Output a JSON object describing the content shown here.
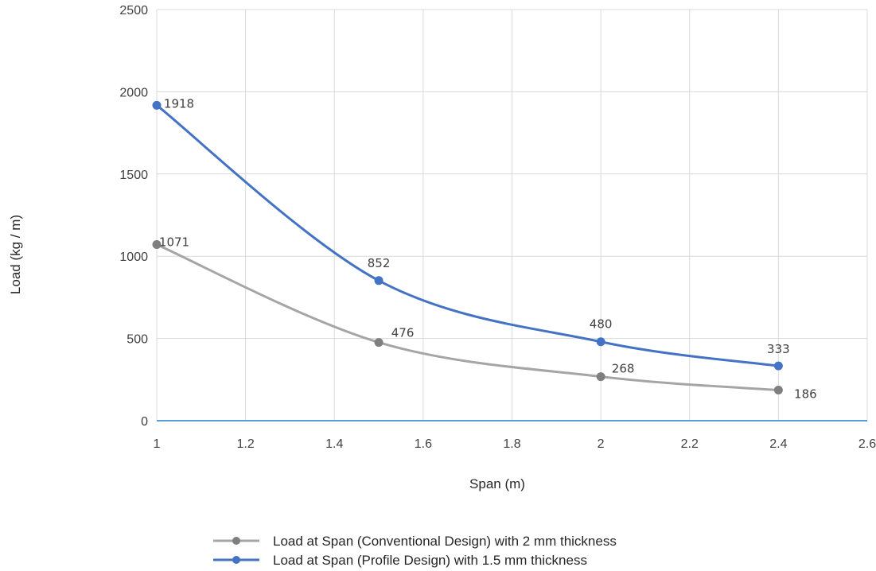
{
  "chart_data": {
    "type": "line",
    "title": "",
    "xlabel": "Span (m)",
    "ylabel": "Load (kg / m)",
    "xlim": [
      1,
      2.6
    ],
    "ylim": [
      0,
      2500
    ],
    "x_ticks": [
      "1",
      "1.2",
      "1.4",
      "1.6",
      "1.8",
      "2",
      "2.2",
      "2.4",
      "2.6"
    ],
    "y_ticks": [
      "0",
      "500",
      "1000",
      "1500",
      "2000",
      "2500"
    ],
    "grid": true,
    "smooth": true,
    "legend_position": "bottom",
    "series": [
      {
        "name": "Load at Span (Conventional Design) with 2 mm thickness",
        "color": "#a5a5a5",
        "marker_color": "#7f7f7f",
        "x": [
          1,
          1.5,
          2,
          2.4
        ],
        "y": [
          1071,
          476,
          268,
          186
        ],
        "labels": [
          "1071",
          "476",
          "268",
          "186"
        ]
      },
      {
        "name": "Load at Span (Profile Design) with 1.5 mm thickness",
        "color": "#4472c4",
        "marker_color": "#4472c4",
        "x": [
          1,
          1.5,
          2,
          2.4
        ],
        "y": [
          1918,
          852,
          480,
          333
        ],
        "labels": [
          "1918",
          "852",
          "480",
          "333"
        ]
      }
    ]
  }
}
